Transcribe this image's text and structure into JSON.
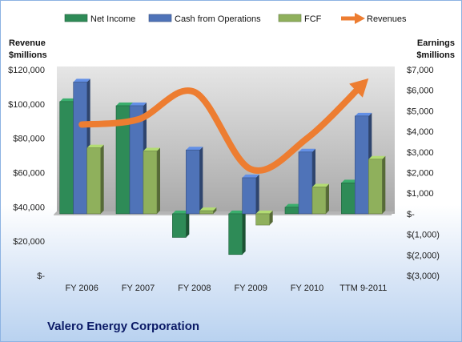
{
  "chart_data": {
    "type": "bar",
    "title": "Valero Energy Corporation",
    "left_axis_label": [
      "Revenue",
      "$millions"
    ],
    "right_axis_label": [
      "Earnings",
      "$millions"
    ],
    "categories": [
      "FY 2006",
      "FY 2007",
      "FY 2008",
      "FY 2009",
      "FY 2010",
      "TTM 9-2011"
    ],
    "left_ticks": [
      "$-",
      "$20,000",
      "$40,000",
      "$60,000",
      "$80,000",
      "$100,000",
      "$120,000"
    ],
    "right_ticks": [
      "$(3,000)",
      "$(2,000)",
      "$(1,000)",
      "$-",
      "$1,000",
      "$2,000",
      "$3,000",
      "$4,000",
      "$5,000",
      "$6,000",
      "$7,000"
    ],
    "left_ylim": [
      0,
      120000
    ],
    "right_ylim": [
      -3000,
      7000
    ],
    "legend_position": "top",
    "series": [
      {
        "name": "Net Income",
        "axis": "right",
        "kind": "bar",
        "color": "#2e8b57",
        "values": [
          5450,
          5250,
          -1150,
          -1980,
          320,
          1500
        ]
      },
      {
        "name": "Cash from Operations",
        "axis": "right",
        "kind": "bar",
        "color": "#4f73b8",
        "values": [
          6400,
          5250,
          3100,
          1750,
          3000,
          4750
        ]
      },
      {
        "name": "FCF",
        "axis": "right",
        "kind": "bar",
        "color": "#8fb05c",
        "values": [
          3200,
          3050,
          150,
          -550,
          1300,
          2650
        ]
      },
      {
        "name": "Revenues",
        "axis": "left",
        "kind": "line",
        "color": "#ed7d31",
        "values": [
          88000,
          91000,
          107000,
          62000,
          80000,
          112000
        ]
      }
    ]
  }
}
